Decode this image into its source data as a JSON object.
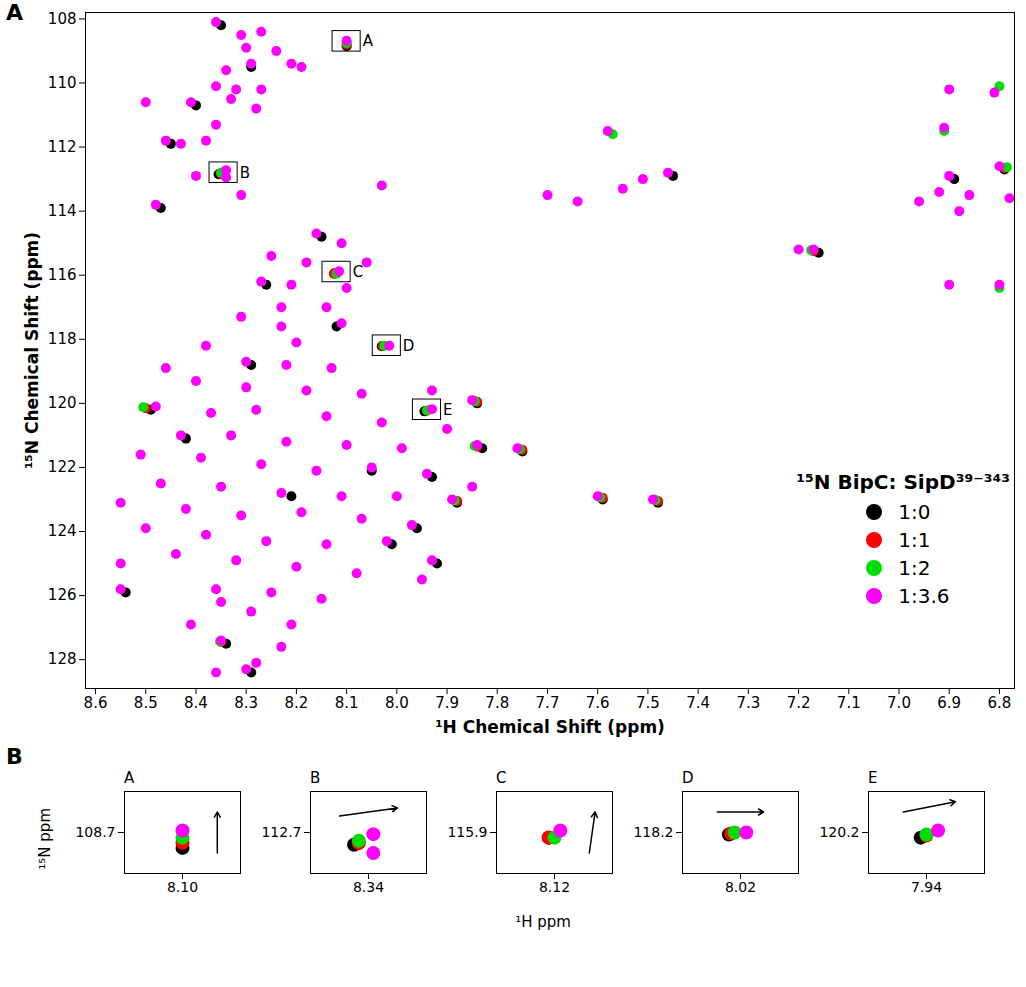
{
  "chart_data": [
    {
      "type": "scatter",
      "panel": "A",
      "x_label": "¹H Chemical Shift (ppm)",
      "y_label": "¹⁵N Chemical Shift (ppm)",
      "xlim": [
        8.62,
        6.77
      ],
      "ylim": [
        107.8,
        128.9
      ],
      "xticks": [
        8.6,
        8.5,
        8.4,
        8.3,
        8.2,
        8.1,
        {
          "value": 8,
          "label": "8.0"
        },
        7.9,
        7.8,
        7.7,
        7.6,
        7.5,
        7.4,
        7.3,
        7.2,
        7.1,
        {
          "value": 7,
          "label": "7.0"
        },
        6.9,
        6.8
      ],
      "yticks": [
        108,
        110,
        112,
        114,
        116,
        118,
        120,
        122,
        124,
        126,
        128
      ],
      "grid": false,
      "legend": "bottom-right",
      "legend_title": "¹⁵N BipC: SipD³⁹⁻³⁴³",
      "series": [
        {
          "name": "1:0",
          "color": "#000000",
          "x": [
            8.1,
            8.355,
            8.125,
            8.03,
            7.945,
            8.35,
            8.29,
            8.4,
            8.45,
            8.47,
            8.15,
            8.26,
            8.12,
            8.29,
            7.84,
            7.83,
            7.75,
            7.88,
            7.96,
            7.92,
            8.54,
            8.34,
            8.29,
            7.45,
            7.16,
            7.59,
            7.48,
            6.89,
            6.79,
            8.49,
            8.42,
            8.05,
            7.93,
            8.21,
            8.01
          ],
          "y": [
            108.85,
            112.85,
            115.95,
            118.22,
            120.25,
            108.2,
            109.5,
            110.7,
            111.9,
            113.9,
            114.8,
            116.3,
            117.6,
            118.8,
            120.0,
            121.4,
            121.5,
            123.1,
            123.9,
            125.0,
            125.9,
            127.5,
            128.4,
            112.9,
            115.3,
            123.0,
            123.1,
            113.0,
            112.7,
            120.2,
            121.1,
            122.1,
            122.3,
            122.9,
            124.4
          ]
        },
        {
          "name": "1:1",
          "color": "#ff0000",
          "x": [
            8.1,
            8.35,
            8.125,
            8.028,
            7.94,
            7.84,
            7.75,
            7.88,
            7.59,
            7.48,
            7.17,
            8.35,
            6.79,
            8.5,
            7.84
          ],
          "y": [
            108.8,
            112.83,
            115.95,
            118.21,
            120.23,
            121.35,
            121.45,
            123.05,
            122.95,
            123.05,
            115.25,
            127.45,
            112.65,
            120.15,
            119.95
          ]
        },
        {
          "name": "1:2",
          "color": "#00dd00",
          "x": [
            8.1,
            8.35,
            8.12,
            8.025,
            7.94,
            7.845,
            7.755,
            7.885,
            7.595,
            7.485,
            7.175,
            8.352,
            6.785,
            7.57,
            6.91,
            8.505,
            7.845,
            6.8,
            6.8
          ],
          "y": [
            108.75,
            112.8,
            115.95,
            118.2,
            120.22,
            121.33,
            121.43,
            123.03,
            122.93,
            123.02,
            115.22,
            127.43,
            112.63,
            111.6,
            111.5,
            120.12,
            119.93,
            110.1,
            116.4
          ]
        },
        {
          "name": "1:3.6",
          "color": "#ff00ff",
          "x": [
            8.36,
            8.31,
            8.27,
            8.3,
            8.1,
            8.24,
            8.29,
            8.21,
            8.19,
            8.34,
            8.36,
            8.32,
            8.27,
            8.5,
            8.41,
            8.33,
            8.36,
            8.28,
            8.46,
            8.43,
            8.38,
            8.34,
            8.34,
            8.48,
            8.31,
            8.03,
            8.4,
            8.16,
            8.11,
            8.25,
            8.18,
            8.115,
            8.06,
            8.27,
            8.21,
            8.1,
            8.14,
            8.23,
            8.31,
            8.23,
            8.11,
            8.38,
            8.2,
            8.015,
            8.3,
            8.22,
            8.13,
            8.46,
            8.4,
            8.3,
            8.18,
            8.07,
            7.93,
            7.85,
            7.93,
            8.48,
            8.37,
            8.28,
            8.14,
            8.03,
            7.9,
            8.43,
            8.33,
            8.22,
            8.1,
            7.99,
            7.84,
            7.76,
            8.51,
            8.39,
            8.27,
            8.16,
            8.05,
            7.94,
            7.85,
            8.47,
            8.35,
            8.23,
            8.11,
            8.0,
            7.89,
            8.55,
            8.42,
            8.31,
            8.19,
            8.07,
            7.97,
            8.5,
            8.38,
            8.26,
            8.14,
            8.02,
            7.93,
            8.44,
            8.32,
            8.2,
            8.08,
            8.55,
            8.55,
            8.36,
            8.25,
            8.15,
            7.95,
            8.35,
            8.29,
            8.21,
            8.41,
            8.35,
            8.23,
            8.28,
            8.36,
            8.3,
            7.58,
            7.7,
            7.64,
            7.55,
            7.51,
            7.46,
            7.2,
            7.17,
            7.6,
            7.49,
            6.91,
            6.9,
            6.86,
            6.92,
            6.8,
            6.78,
            6.88,
            6.9,
            6.8,
            6.9,
            6.81,
            6.96
          ],
          "y": [
            108.1,
            108.5,
            108.4,
            108.9,
            108.68,
            109.0,
            109.4,
            109.4,
            109.5,
            109.6,
            110.1,
            110.2,
            110.2,
            110.6,
            110.6,
            110.5,
            111.3,
            110.8,
            111.8,
            111.9,
            111.8,
            112.72,
            112.95,
            113.8,
            113.5,
            113.2,
            112.9,
            114.7,
            115.0,
            115.4,
            115.6,
            115.88,
            115.6,
            116.2,
            116.3,
            116.4,
            117.0,
            117.0,
            117.3,
            117.6,
            117.5,
            118.2,
            118.1,
            118.2,
            118.7,
            118.8,
            118.9,
            118.9,
            119.3,
            119.5,
            119.6,
            119.7,
            119.6,
            119.9,
            120.18,
            120.1,
            120.3,
            120.2,
            120.4,
            120.6,
            120.8,
            121.0,
            121.0,
            121.2,
            121.3,
            121.4,
            121.3,
            121.4,
            121.6,
            121.7,
            121.9,
            122.1,
            122.0,
            122.2,
            122.6,
            122.5,
            122.6,
            122.8,
            122.9,
            122.9,
            123.0,
            123.1,
            123.3,
            123.5,
            123.4,
            123.6,
            123.8,
            123.9,
            124.1,
            124.3,
            124.4,
            124.3,
            124.9,
            124.7,
            124.9,
            125.1,
            125.3,
            125.0,
            125.8,
            125.8,
            125.9,
            126.1,
            125.5,
            126.2,
            126.5,
            126.9,
            126.9,
            127.4,
            127.6,
            128.1,
            128.4,
            128.3,
            111.5,
            113.5,
            113.7,
            113.3,
            113.0,
            112.8,
            115.2,
            115.2,
            122.9,
            123.0,
            111.4,
            112.9,
            113.5,
            113.4,
            112.6,
            113.6,
            114.0,
            116.3,
            116.3,
            110.2,
            110.3,
            113.7
          ]
        }
      ],
      "annotations": [
        {
          "label": "A",
          "x": 8.1,
          "y": 108.7
        },
        {
          "label": "B",
          "x": 8.345,
          "y": 112.8
        },
        {
          "label": "C",
          "x": 8.12,
          "y": 115.9
        },
        {
          "label": "D",
          "x": 8.02,
          "y": 118.2
        },
        {
          "label": "E",
          "x": 7.94,
          "y": 120.2
        }
      ]
    },
    {
      "type": "scatter",
      "panel": "B",
      "x_label": "¹H ppm",
      "y_label": "¹⁵N ppm",
      "insets": [
        {
          "title": "A",
          "xlim": [
            8.15,
            8.05
          ],
          "ylim": [
            108.3,
            109.1
          ],
          "xticks": [
            {
              "value": 8.1,
              "label": "8.10"
            }
          ],
          "yticks": [
            108.7
          ],
          "series": [
            {
              "name": "1:0",
              "x": [
                8.1
              ],
              "y": [
                108.85
              ]
            },
            {
              "name": "1:1",
              "x": [
                8.1
              ],
              "y": [
                108.8
              ]
            },
            {
              "name": "1:2",
              "x": [
                8.1
              ],
              "y": [
                108.75
              ]
            },
            {
              "name": "1:3.6",
              "x": [
                8.1
              ],
              "y": [
                108.68
              ]
            }
          ],
          "arrow": [
            8.07,
            108.9,
            8.07,
            108.5
          ]
        },
        {
          "title": "B",
          "xlim": [
            8.4,
            8.28
          ],
          "ylim": [
            112.2,
            113.2
          ],
          "xticks": [
            8.34
          ],
          "yticks": [
            112.7
          ],
          "series": [
            {
              "name": "1:0",
              "x": [
                8.355
              ],
              "y": [
                112.85
              ]
            },
            {
              "name": "1:1",
              "x": [
                8.35
              ],
              "y": [
                112.83
              ]
            },
            {
              "name": "1:2",
              "x": [
                8.35
              ],
              "y": [
                112.8
              ]
            },
            {
              "name": "1:3.6",
              "x": [
                8.335,
                8.335
              ],
              "y": [
                112.72,
                112.95
              ]
            }
          ],
          "arrow": [
            8.37,
            112.5,
            8.31,
            112.4
          ]
        },
        {
          "title": "C",
          "xlim": [
            8.17,
            8.07
          ],
          "ylim": [
            115.5,
            116.3
          ],
          "xticks": [
            8.12
          ],
          "yticks": [
            115.9
          ],
          "series": [
            {
              "name": "1:0",
              "x": [
                8.125
              ],
              "y": [
                115.95
              ]
            },
            {
              "name": "1:1",
              "x": [
                8.125
              ],
              "y": [
                115.95
              ]
            },
            {
              "name": "1:2",
              "x": [
                8.12
              ],
              "y": [
                115.95
              ]
            },
            {
              "name": "1:3.6",
              "x": [
                8.115
              ],
              "y": [
                115.88
              ]
            }
          ],
          "arrow": [
            8.09,
            116.1,
            8.085,
            115.7
          ]
        },
        {
          "title": "D",
          "xlim": [
            8.07,
            7.97
          ],
          "ylim": [
            117.8,
            118.6
          ],
          "xticks": [
            8.02
          ],
          "yticks": [
            118.2
          ],
          "series": [
            {
              "name": "1:0",
              "x": [
                8.03
              ],
              "y": [
                118.22
              ]
            },
            {
              "name": "1:1",
              "x": [
                8.028
              ],
              "y": [
                118.21
              ]
            },
            {
              "name": "1:2",
              "x": [
                8.025
              ],
              "y": [
                118.2
              ]
            },
            {
              "name": "1:3.6",
              "x": [
                8.015
              ],
              "y": [
                118.2
              ]
            }
          ],
          "arrow": [
            8.04,
            118.0,
            8.0,
            118.0
          ]
        },
        {
          "title": "E",
          "xlim": [
            7.99,
            7.89
          ],
          "ylim": [
            119.8,
            120.6
          ],
          "xticks": [
            7.94
          ],
          "yticks": [
            120.2
          ],
          "series": [
            {
              "name": "1:0",
              "x": [
                7.945
              ],
              "y": [
                120.25
              ]
            },
            {
              "name": "1:1",
              "x": [
                7.94
              ],
              "y": [
                120.23
              ]
            },
            {
              "name": "1:2",
              "x": [
                7.94
              ],
              "y": [
                120.22
              ]
            },
            {
              "name": "1:3.6",
              "x": [
                7.93
              ],
              "y": [
                120.18
              ]
            }
          ],
          "arrow": [
            7.96,
            120.0,
            7.915,
            119.9
          ]
        }
      ]
    }
  ]
}
